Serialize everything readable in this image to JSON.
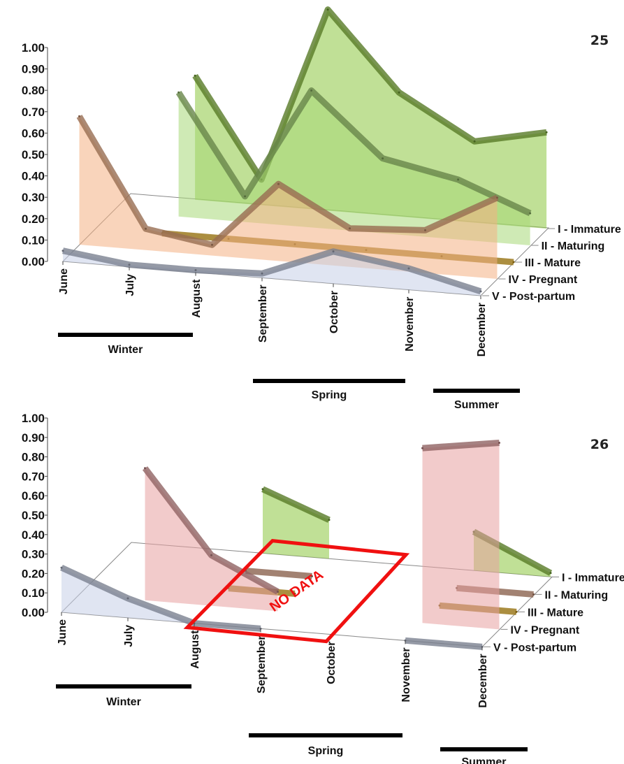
{
  "chart_data": [
    {
      "type": "area",
      "figure_number": "25",
      "categories": [
        "June",
        "July",
        "August",
        "September",
        "October",
        "November",
        "December"
      ],
      "yticks": [
        "0.00",
        "0.10",
        "0.20",
        "0.30",
        "0.40",
        "0.50",
        "0.60",
        "0.70",
        "0.80",
        "0.90",
        "1.00"
      ],
      "ylim": [
        0,
        1
      ],
      "series": [
        {
          "name": "I - Immature",
          "color": "#8cc63f",
          "values": [
            null,
            0.58,
            0.12,
            0.94,
            0.58,
            0.38,
            0.45
          ]
        },
        {
          "name": "II - Maturing",
          "color": "#a8d878",
          "values": [
            null,
            0.58,
            0.12,
            0.64,
            0.35,
            0.28,
            0.15
          ]
        },
        {
          "name": "III - Mature",
          "color": "#f2b81a",
          "values": [
            null,
            0.0,
            0.0,
            0.0,
            0.0,
            0.0,
            0.0
          ]
        },
        {
          "name": "IV - Pregnant",
          "color": "#f4b083",
          "values": [
            0.6,
            0.1,
            0.05,
            0.36,
            0.18,
            0.2,
            0.38
          ]
        },
        {
          "name": "V - Post-partum",
          "color": "#c7d0e8",
          "values": [
            0.05,
            0.01,
            0.01,
            0.02,
            0.15,
            0.1,
            0.02
          ]
        }
      ],
      "seasons": [
        {
          "label": "Winter",
          "from": "June",
          "to": "August"
        },
        {
          "label": "Spring",
          "from": "September",
          "to": "November"
        },
        {
          "label": "Summer",
          "from": "December",
          "to": "December"
        }
      ]
    },
    {
      "type": "area",
      "figure_number": "26",
      "categories": [
        "June",
        "July",
        "August",
        "September",
        "October",
        "November",
        "December"
      ],
      "yticks": [
        "0.00",
        "0.10",
        "0.20",
        "0.30",
        "0.40",
        "0.50",
        "0.60",
        "0.70",
        "0.80",
        "0.90",
        "1.00"
      ],
      "ylim": [
        0,
        1
      ],
      "annotation": "NO DATA",
      "series": [
        {
          "name": "I - Immature",
          "color": "#8cc63f",
          "values": [
            null,
            null,
            0.33,
            0.2,
            null,
            0.2,
            0.02
          ]
        },
        {
          "name": "II - Maturing",
          "color": "#e0a080",
          "values": [
            null,
            null,
            0.0,
            0.0,
            null,
            0.0,
            0.0
          ]
        },
        {
          "name": "III - Mature",
          "color": "#f2b81a",
          "values": [
            null,
            null,
            0.0,
            0.0,
            null,
            0.0,
            0.0
          ]
        },
        {
          "name": "IV - Pregnant",
          "color": "#e8a0a0",
          "values": [
            null,
            0.68,
            0.26,
            0.1,
            null,
            0.9,
            0.96
          ]
        },
        {
          "name": "V - Post-partum",
          "color": "#c7d0e8",
          "values": [
            0.23,
            0.1,
            0.0,
            0.0,
            null,
            0.0,
            0.0
          ]
        }
      ],
      "seasons": [
        {
          "label": "Winter",
          "from": "June",
          "to": "August"
        },
        {
          "label": "Spring",
          "from": "September",
          "to": "November"
        },
        {
          "label": "Summer",
          "from": "December",
          "to": "December"
        }
      ]
    }
  ]
}
